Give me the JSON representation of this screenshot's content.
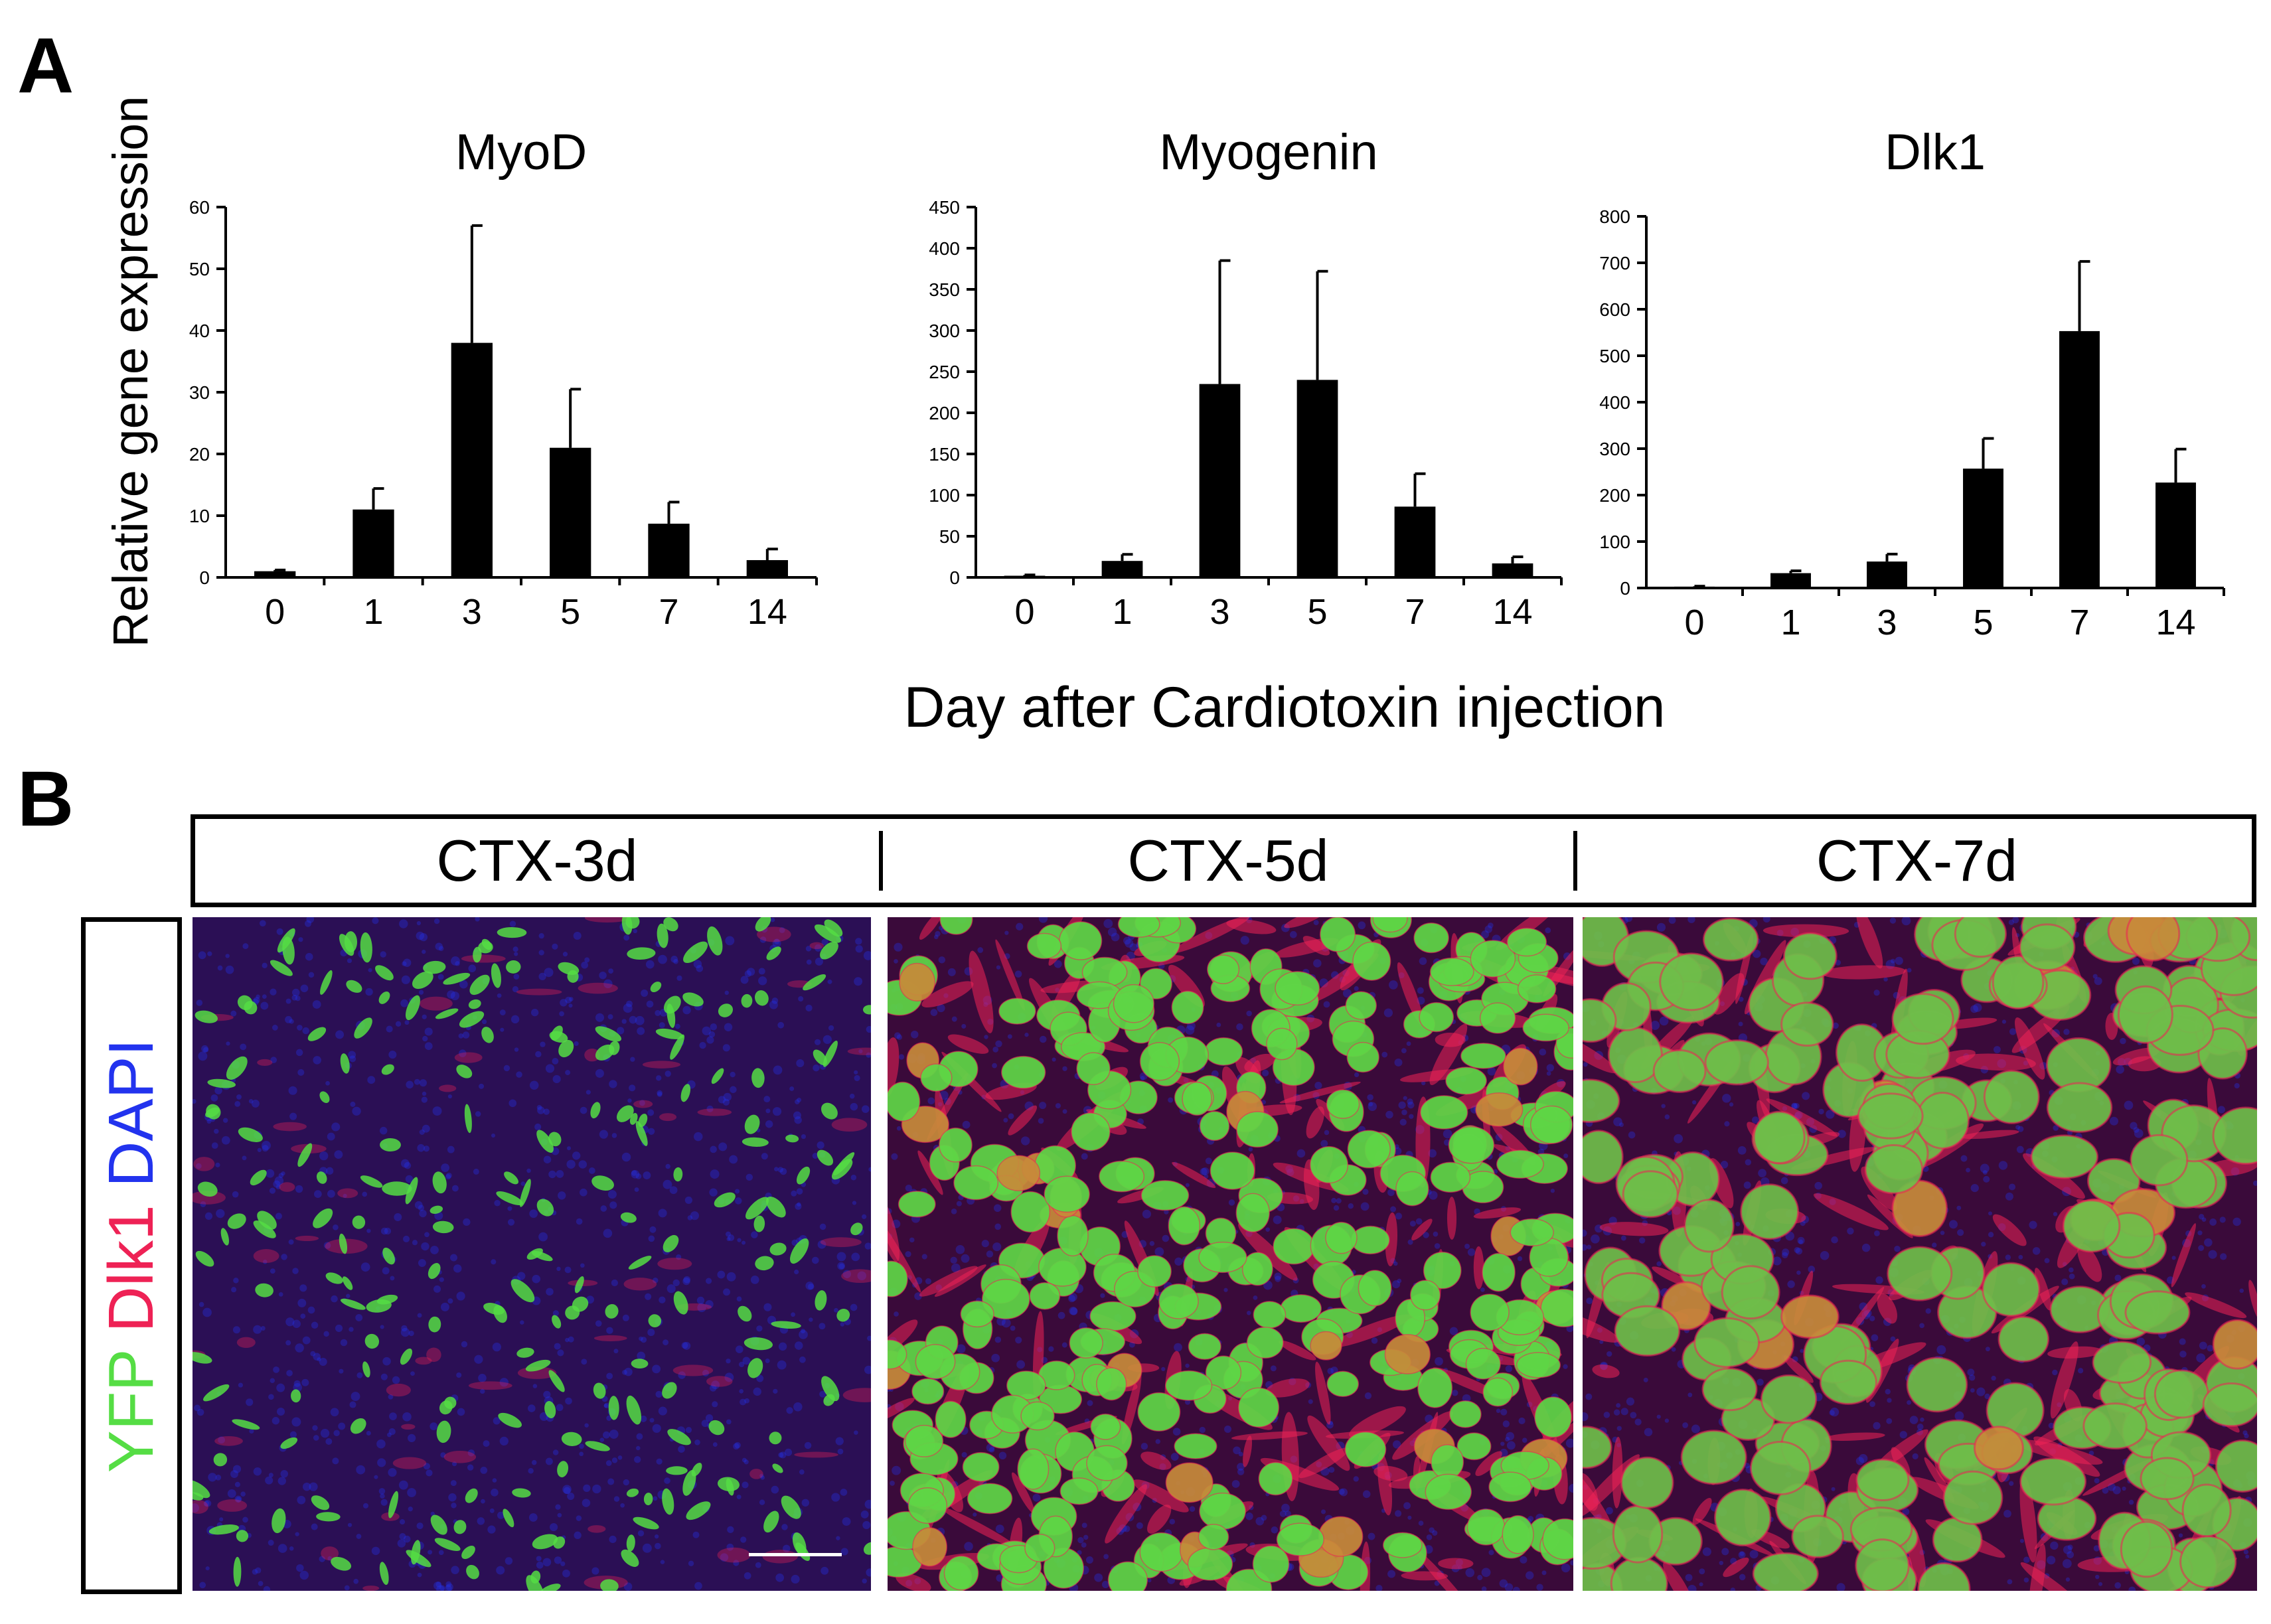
{
  "panel_a": {
    "letter": "A"
  },
  "panel_b": {
    "letter": "B"
  },
  "shared_ylabel": "Relative gene expression",
  "shared_xlabel": "Day after Cardiotoxin injection",
  "chart_data": [
    {
      "type": "bar",
      "title": "MyoD",
      "categories": [
        "0",
        "1",
        "3",
        "5",
        "7",
        "14"
      ],
      "values": [
        1,
        11,
        38,
        21,
        8.7,
        2.8
      ],
      "errors": [
        0.2,
        3.4,
        19,
        9.5,
        3.5,
        1.8
      ],
      "ylim": [
        0,
        60
      ],
      "yticks": [
        0,
        10,
        20,
        30,
        40,
        50,
        60
      ],
      "xlabel": "Day after Cardiotoxin injection",
      "ylabel": "Relative gene expression"
    },
    {
      "type": "bar",
      "title": "Myogenin",
      "categories": [
        "0",
        "1",
        "3",
        "5",
        "7",
        "14"
      ],
      "values": [
        2,
        20,
        235,
        240,
        86,
        17
      ],
      "errors": [
        1,
        8,
        150,
        132,
        40,
        8
      ],
      "ylim": [
        0,
        450
      ],
      "yticks": [
        0,
        50,
        100,
        150,
        200,
        250,
        300,
        350,
        400,
        450
      ],
      "xlabel": "Day after Cardiotoxin injection",
      "ylabel": "Relative gene expression"
    },
    {
      "type": "bar",
      "title": "Dlk1",
      "categories": [
        "0",
        "1",
        "3",
        "5",
        "7",
        "14"
      ],
      "values": [
        3,
        32,
        57,
        257,
        553,
        227
      ],
      "errors": [
        1,
        5,
        16,
        65,
        150,
        72
      ],
      "ylim": [
        0,
        800
      ],
      "yticks": [
        0,
        100,
        200,
        300,
        400,
        500,
        600,
        700,
        800
      ],
      "xlabel": "Day after Cardiotoxin injection",
      "ylabel": "Relative gene expression"
    }
  ],
  "micrographs": {
    "columns": [
      "CTX-3d",
      "CTX-5d",
      "CTX-7d"
    ],
    "stain_label": {
      "yfp": "YFP",
      "dlk1": "Dlk1",
      "dapi": "DAPI"
    },
    "colors": {
      "yfp": "#55dd44",
      "dlk1": "#ee2255",
      "dapi": "#2233ee",
      "background": "#2a0a4a",
      "scale_bar": "#ffffff"
    }
  }
}
